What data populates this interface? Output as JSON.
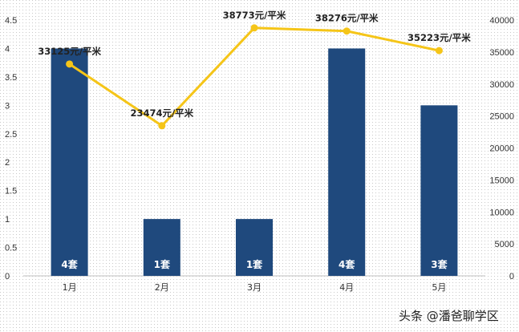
{
  "chart_data": {
    "type": "bar",
    "categories": [
      "1月",
      "2月",
      "3月",
      "4月",
      "5月"
    ],
    "series": [
      {
        "type": "bar",
        "axis": "left",
        "values": [
          4,
          1,
          1,
          4,
          3
        ],
        "data_labels": [
          "4套",
          "1套",
          "1套",
          "4套",
          "3套"
        ],
        "color": "#1F497D"
      },
      {
        "type": "line",
        "axis": "right",
        "values": [
          33125,
          23474,
          38773,
          38276,
          35223
        ],
        "data_labels": [
          "33125元/平米",
          "23474元/平米",
          "38773元/平米",
          "38276元/平米",
          "35223元/平米"
        ],
        "color": "#F5C518"
      }
    ],
    "y_left": {
      "ylim": [
        0,
        4.5
      ],
      "ticks": [
        0,
        0.5,
        1,
        1.5,
        2,
        2.5,
        3,
        3.5,
        4,
        4.5
      ],
      "tick_labels": [
        "0",
        "0.5",
        "1",
        "1.5",
        "2",
        "2.5",
        "3",
        "3.5",
        "4",
        "4.5"
      ]
    },
    "y_right": {
      "ylim": [
        0,
        40000
      ],
      "ticks": [
        0,
        5000,
        10000,
        15000,
        20000,
        25000,
        30000,
        35000,
        40000
      ],
      "tick_labels": [
        "0",
        "5000",
        "10000",
        "15000",
        "20000",
        "25000",
        "30000",
        "35000",
        "40000"
      ]
    },
    "grid": false,
    "legend": "none",
    "title": "",
    "xlabel": "",
    "ylabel": ""
  },
  "watermark": "头条 @潘爸聊学区"
}
